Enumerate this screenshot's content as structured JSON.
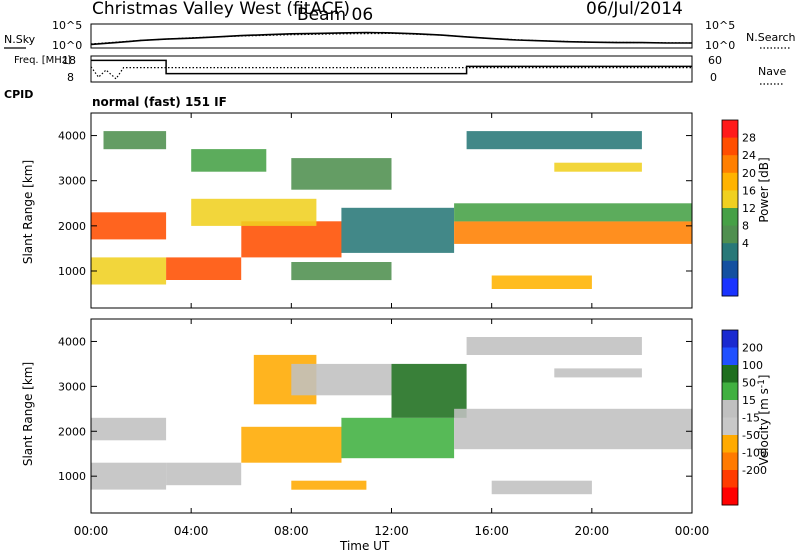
{
  "header": {
    "radar": "Christmas Valley West (fitACF)",
    "beam": "Beam 06",
    "date": "06/Jul/2014"
  },
  "chart_data": [
    {
      "type": "line",
      "panel": "noise",
      "left_label": "N.Sky",
      "left_ticks": [
        "10^5",
        "10^0"
      ],
      "right_label": "N.Search",
      "right_ticks": [
        "10^5",
        "10^0"
      ],
      "series": [
        {
          "name": "N.Sky",
          "style": "solid",
          "x": [
            0,
            1,
            2,
            3,
            4,
            5,
            6,
            7,
            8,
            9,
            10,
            11,
            12,
            13,
            14,
            15,
            16,
            17,
            18,
            19,
            20,
            21,
            22,
            23,
            24
          ],
          "y": [
            0.6,
            1.0,
            1.5,
            1.8,
            2.0,
            2.3,
            2.6,
            2.8,
            3.0,
            3.1,
            3.2,
            3.3,
            3.2,
            3.0,
            2.7,
            2.3,
            1.9,
            1.6,
            1.4,
            1.2,
            1.1,
            1.0,
            1.0,
            0.9,
            0.9
          ]
        },
        {
          "name": "N.Search",
          "style": "dotted",
          "x": [
            0,
            2,
            4,
            6,
            8,
            10,
            12,
            14,
            16,
            18,
            20,
            22,
            24
          ],
          "y": [
            0.7,
            1.5,
            2.1,
            2.5,
            2.8,
            3.0,
            3.1,
            2.7,
            1.9,
            1.4,
            1.1,
            1.0,
            0.9
          ]
        }
      ]
    },
    {
      "type": "line",
      "panel": "frequency",
      "left_label": "Freq. [MHz]",
      "left_ticks": [
        "18",
        "8"
      ],
      "right_label": "Nave",
      "right_ticks": [
        "60",
        "0"
      ],
      "series": [
        {
          "name": "Freq.",
          "style": "solid",
          "x": [
            0,
            0.2,
            0.2,
            3.0,
            3.0,
            15.0,
            15.0,
            24
          ],
          "y": [
            17,
            17,
            17,
            17,
            11.5,
            11.5,
            14.5,
            14.5
          ]
        },
        {
          "name": "Nave",
          "style": "dotted",
          "x": [
            0,
            0.3,
            0.6,
            1.0,
            1.3,
            3.0,
            24
          ],
          "y": [
            38,
            12,
            30,
            8,
            36,
            36,
            36
          ]
        }
      ]
    },
    {
      "type": "heatmap",
      "panel": "power",
      "cpid_label": "CPID",
      "cpid_text": "normal (fast) 151 IF",
      "ylabel": "Slant Range [km]",
      "ylim": [
        180,
        4500
      ],
      "yticks": [
        1000,
        2000,
        3000,
        4000
      ],
      "xlabel": "Time UT",
      "xlim": [
        0,
        24
      ],
      "xticks": [
        "00:00",
        "04:00",
        "08:00",
        "12:00",
        "16:00",
        "20:00",
        "00:00"
      ],
      "colorbar_label": "Power [dB]",
      "colorbar_ticks": [
        "28",
        "24",
        "20",
        "16",
        "12",
        "8",
        "4"
      ],
      "colorbar_colors": [
        "#ff1a1a",
        "#ff4e00",
        "#ff7f00",
        "#ffb300",
        "#f0d020",
        "#46a046",
        "#4f8f4f",
        "#287878",
        "#1450a0",
        "#1a33ff"
      ],
      "regions": [
        {
          "t": [
            0,
            3
          ],
          "r": [
            1700,
            2300
          ],
          "level": 25
        },
        {
          "t": [
            0,
            3
          ],
          "r": [
            700,
            1300
          ],
          "level": 16
        },
        {
          "t": [
            0.5,
            3
          ],
          "r": [
            3700,
            4100
          ],
          "level": 10
        },
        {
          "t": [
            3,
            6
          ],
          "r": [
            800,
            1300
          ],
          "level": 27
        },
        {
          "t": [
            6,
            10
          ],
          "r": [
            1300,
            2100
          ],
          "level": 25
        },
        {
          "t": [
            4,
            9
          ],
          "r": [
            2000,
            2600
          ],
          "level": 18
        },
        {
          "t": [
            4,
            7
          ],
          "r": [
            3200,
            3700
          ],
          "level": 14
        },
        {
          "t": [
            8,
            12
          ],
          "r": [
            2800,
            3500
          ],
          "level": 12
        },
        {
          "t": [
            8,
            12
          ],
          "r": [
            800,
            1200
          ],
          "level": 10
        },
        {
          "t": [
            10,
            14.5
          ],
          "r": [
            1400,
            2400
          ],
          "level": 8
        },
        {
          "t": [
            14.5,
            24
          ],
          "r": [
            1600,
            2100
          ],
          "level": 22
        },
        {
          "t": [
            14.5,
            24
          ],
          "r": [
            2100,
            2500
          ],
          "level": 14
        },
        {
          "t": [
            16,
            20
          ],
          "r": [
            600,
            900
          ],
          "level": 20
        },
        {
          "t": [
            15,
            22
          ],
          "r": [
            3700,
            4100
          ],
          "level": 9
        },
        {
          "t": [
            18.5,
            22
          ],
          "r": [
            3200,
            3400
          ],
          "level": 16
        }
      ]
    },
    {
      "type": "heatmap",
      "panel": "velocity",
      "ylabel": "Slant Range [km]",
      "ylim": [
        180,
        4500
      ],
      "yticks": [
        1000,
        2000,
        3000,
        4000
      ],
      "xlabel": "Time UT",
      "xlim": [
        0,
        24
      ],
      "xticks": [
        "00:00",
        "04:00",
        "08:00",
        "12:00",
        "16:00",
        "20:00",
        "00:00"
      ],
      "colorbar_label": "Velocity [m s^-1]",
      "colorbar_ticks": [
        "200",
        "100",
        "50",
        "15",
        "-15",
        "-50",
        "-100",
        "-200"
      ],
      "colorbar_colors": [
        "#1a2ad0",
        "#2050ff",
        "#1e6e1e",
        "#40b040",
        "#c0c0c0",
        "#c8c8c8",
        "#ffaa00",
        "#ff7a00",
        "#ff3c00",
        "#ff0000"
      ],
      "regions": [
        {
          "t": [
            0,
            3
          ],
          "r": [
            1800,
            2300
          ],
          "level": 0
        },
        {
          "t": [
            0,
            3
          ],
          "r": [
            700,
            1300
          ],
          "level": 0
        },
        {
          "t": [
            3,
            6
          ],
          "r": [
            800,
            1300
          ],
          "level": 0
        },
        {
          "t": [
            6,
            10
          ],
          "r": [
            1300,
            2100
          ],
          "level": -40
        },
        {
          "t": [
            6.5,
            9
          ],
          "r": [
            2600,
            3700
          ],
          "level": -40
        },
        {
          "t": [
            8,
            12
          ],
          "r": [
            2800,
            3500
          ],
          "level": 0
        },
        {
          "t": [
            8,
            11
          ],
          "r": [
            700,
            900
          ],
          "level": -45
        },
        {
          "t": [
            10,
            14.5
          ],
          "r": [
            1400,
            2300
          ],
          "level": 30
        },
        {
          "t": [
            12,
            15
          ],
          "r": [
            2300,
            3500
          ],
          "level": 60
        },
        {
          "t": [
            14.5,
            24
          ],
          "r": [
            1600,
            2500
          ],
          "level": 0
        },
        {
          "t": [
            16,
            20
          ],
          "r": [
            600,
            900
          ],
          "level": 0
        },
        {
          "t": [
            18.5,
            22
          ],
          "r": [
            3200,
            3400
          ],
          "level": 0
        },
        {
          "t": [
            15,
            22
          ],
          "r": [
            3700,
            4100
          ],
          "level": 0
        }
      ]
    }
  ]
}
